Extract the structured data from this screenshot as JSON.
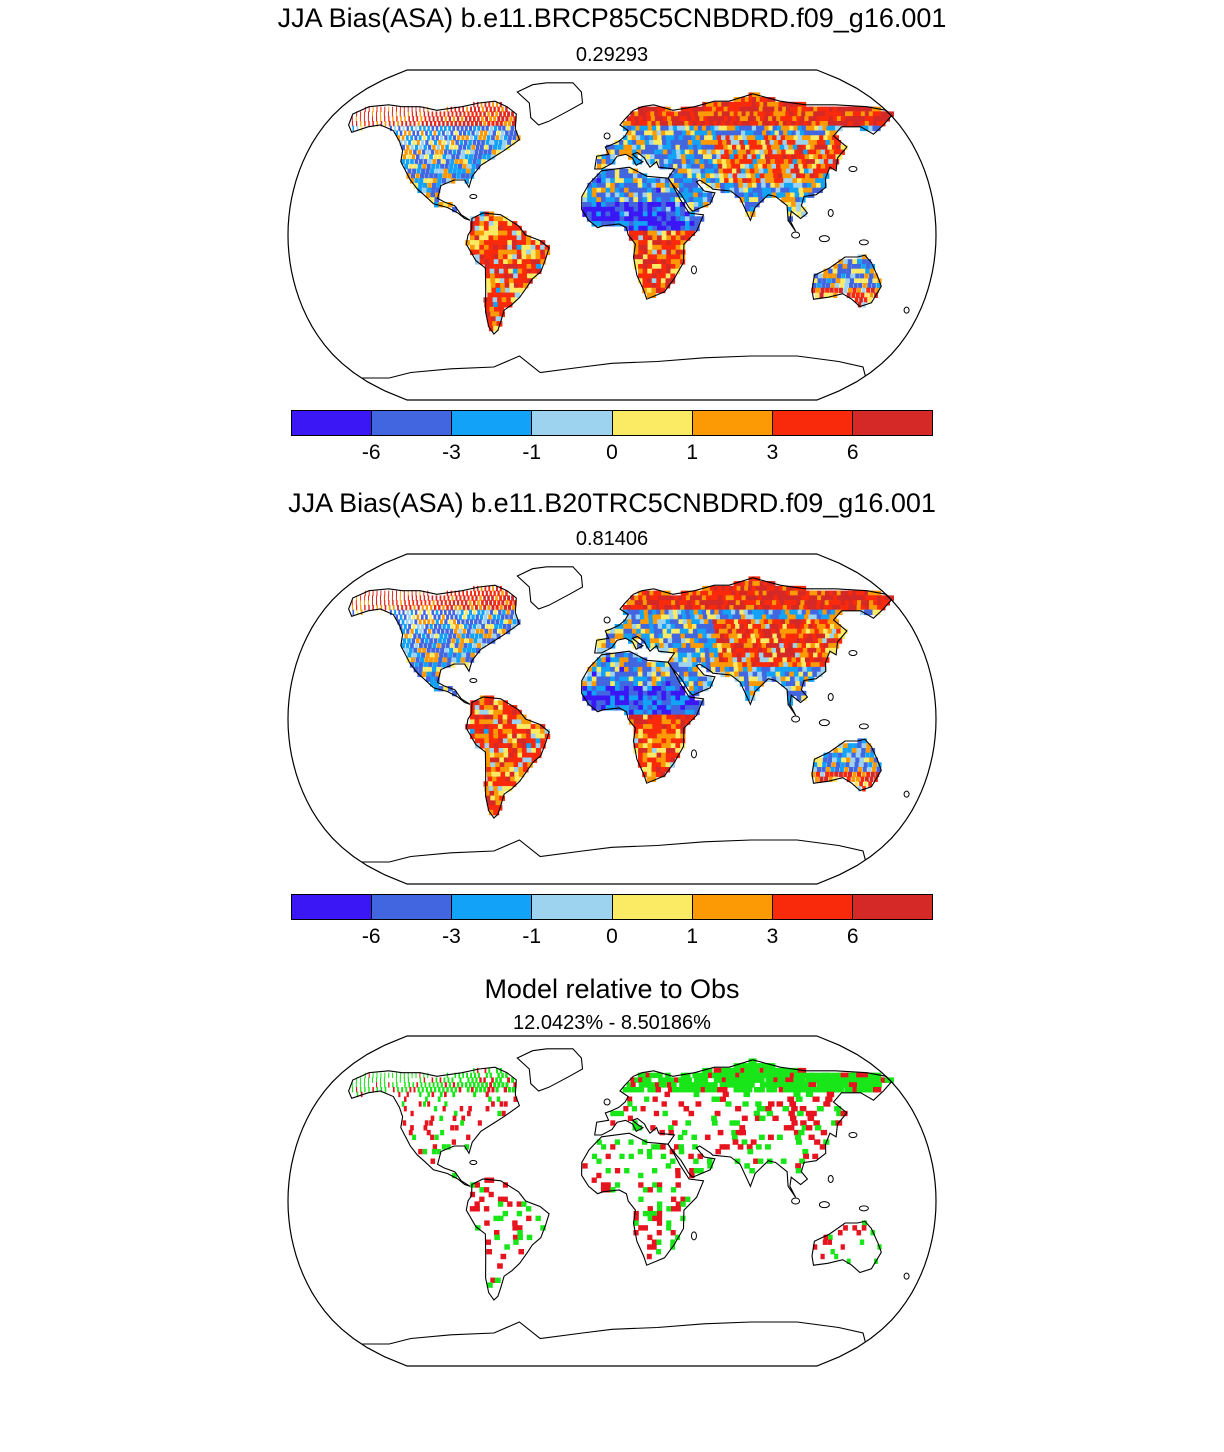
{
  "panels": [
    {
      "title": "JJA Bias(ASA) b.e11.BRCP85C5CNBDRD.f09_g16.001",
      "subtitle": "0.29293",
      "colorbar": {
        "colors": [
          "#3b17f5",
          "#4166e0",
          "#12a2f7",
          "#9dd3ef",
          "#fbeb64",
          "#fb9a05",
          "#f92a0c",
          "#d42926"
        ],
        "ticks": [
          "-6",
          "-3",
          "-1",
          "0",
          "1",
          "3",
          "6"
        ]
      }
    },
    {
      "title": "JJA Bias(ASA) b.e11.B20TRC5CNBDRD.f09_g16.001",
      "subtitle": "0.81406",
      "colorbar": {
        "colors": [
          "#3b17f5",
          "#4166e0",
          "#12a2f7",
          "#9dd3ef",
          "#fbeb64",
          "#fb9a05",
          "#f92a0c",
          "#d42926"
        ],
        "ticks": [
          "-6",
          "-3",
          "-1",
          "0",
          "1",
          "3",
          "6"
        ]
      }
    },
    {
      "title": "Model relative to Obs",
      "subtitle": "12.0423% - 8.50186%",
      "colors": {
        "green": "#19e619",
        "red": "#e6141e"
      }
    }
  ]
}
